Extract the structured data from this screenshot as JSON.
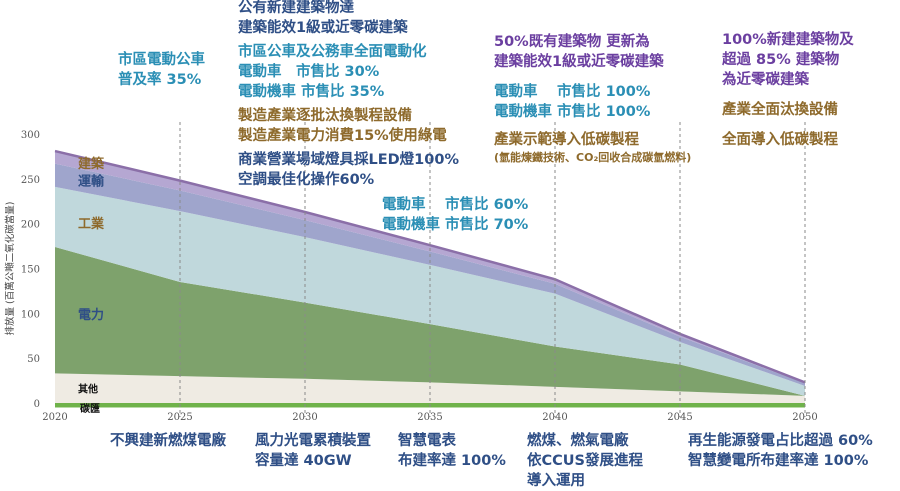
{
  "chart_data": {
    "type": "area",
    "ylabel": "排放量 (百萬公噸二氧化碳當量)",
    "ylim": [
      0,
      300
    ],
    "yticks": [
      0,
      50,
      100,
      150,
      200,
      250,
      300
    ],
    "xlim": [
      2020,
      2050
    ],
    "xticks": [
      2020,
      2025,
      2030,
      2035,
      2040,
      2045,
      2050
    ],
    "grid": false,
    "x": [
      2020,
      2025,
      2030,
      2035,
      2040,
      2045,
      2050
    ],
    "series": [
      {
        "name": "碳匯",
        "values": [
          -5,
          -5,
          -5,
          -5,
          -5,
          -5,
          -5
        ],
        "color": "#6fb24a"
      },
      {
        "name": "其他",
        "values": [
          33,
          30,
          27,
          23,
          18,
          13,
          8
        ],
        "color": "#efebe3"
      },
      {
        "name": "電力",
        "values": [
          141,
          105,
          85,
          65,
          45,
          30,
          0
        ],
        "color": "#7ea26c"
      },
      {
        "name": "工業",
        "values": [
          67,
          79,
          73,
          66,
          59,
          25,
          11
        ],
        "color": "#c0d8dc"
      },
      {
        "name": "運輸",
        "values": [
          26,
          23,
          19,
          15,
          11,
          6,
          3
        ],
        "color": "#9fa5cc"
      },
      {
        "name": "建築",
        "values": [
          14,
          11,
          9,
          7,
          5,
          3,
          1
        ],
        "color": "#b5a7d2"
      }
    ],
    "series_label_colors": [
      "#111111",
      "#111111",
      "#2f4f86",
      "#8e6a2c",
      "#2f4f86",
      "#8e6a2c"
    ],
    "top_line_color": "#8b6fa8",
    "milestone_line_color": "#8a8a8a"
  },
  "annotations": {
    "top": [
      {
        "lines": [
          "市區電動公車",
          "普及率 35%"
        ]
      },
      {
        "lines": [
          "公有新建建築物達",
          "建築能效1級或近零碳建築",
          "市區公車及公務車全面電動化",
          "電動車　市售比 30%",
          "電動機車 市售比 35%",
          "製造產業逐批汰換製程設備",
          "製造產業電力消費15%使用綠電",
          "商業營業場域燈具採LED燈100%",
          "空調最佳化操作60%"
        ]
      },
      {
        "lines": [
          "電動車　 市售比 60%",
          "電動機車 市售比 70%"
        ]
      },
      {
        "lines": [
          "50%既有建築物 更新為",
          "建築能效1級或近零碳建築",
          "電動車　 市售比 100%",
          "電動機車 市售比 100%",
          "產業示範導入低碳製程",
          "(氫能煉鐵技術、CO₂回收合成碳氫燃料)"
        ]
      },
      {
        "lines": [
          "100%新建建築物及",
          "超過 85% 建築物",
          "為近零碳建築",
          "產業全面汰換設備",
          "全面導入低碳製程"
        ]
      }
    ],
    "bottom": [
      {
        "lines": [
          "不興建新燃煤電廠"
        ]
      },
      {
        "lines": [
          "風力光電累積裝置",
          "容量達 40GW"
        ]
      },
      {
        "lines": [
          "智慧電表",
          "布建率達 100%"
        ]
      },
      {
        "lines": [
          "燃煤、燃氣電廠",
          "依CCUS發展進程",
          "導入運用"
        ]
      },
      {
        "lines": [
          "再生能源發電占比超過 60%",
          "智慧變電所布建率達 100%"
        ]
      }
    ]
  }
}
